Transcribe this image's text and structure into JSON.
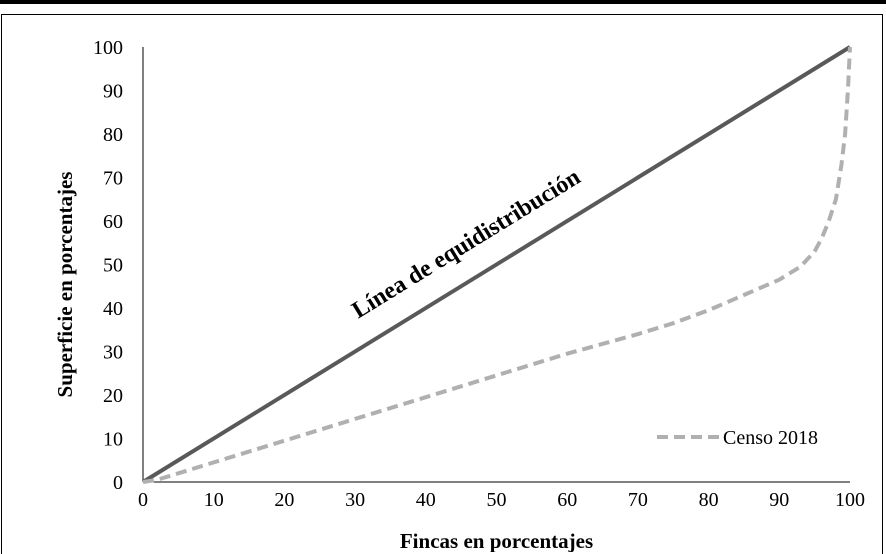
{
  "chart_data": {
    "type": "line",
    "xlabel": "Fincas en porcentajes",
    "ylabel": "Superficie en porcentajes",
    "xlim": [
      0,
      100
    ],
    "ylim": [
      0,
      100
    ],
    "xticks": [
      "0",
      "10",
      "20",
      "30",
      "40",
      "50",
      "60",
      "70",
      "80",
      "90",
      "100"
    ],
    "yticks": [
      "0",
      "10",
      "20",
      "30",
      "40",
      "50",
      "60",
      "70",
      "80",
      "90",
      "100"
    ],
    "grid": false,
    "legend": {
      "position": "bottom-right"
    },
    "annotation": "Línea de equidistribución",
    "series": [
      {
        "name": "",
        "style": "solid",
        "color": "#595959",
        "x": [
          0,
          100
        ],
        "y": [
          0,
          100
        ]
      },
      {
        "name": "Censo 2018",
        "style": "dashed",
        "color": "#b0b0b0",
        "x": [
          0,
          2,
          5,
          10,
          20,
          30,
          40,
          50,
          60,
          70,
          75,
          80,
          85,
          90,
          93,
          95,
          96,
          97,
          98,
          98.8,
          99.3,
          99.7,
          100
        ],
        "y": [
          0,
          0.5,
          2,
          4.5,
          9.5,
          14.5,
          19.5,
          24.5,
          29.5,
          34,
          36.5,
          39.5,
          43,
          46.5,
          49.5,
          53,
          56,
          60,
          65,
          73,
          80,
          90,
          100
        ]
      }
    ]
  }
}
